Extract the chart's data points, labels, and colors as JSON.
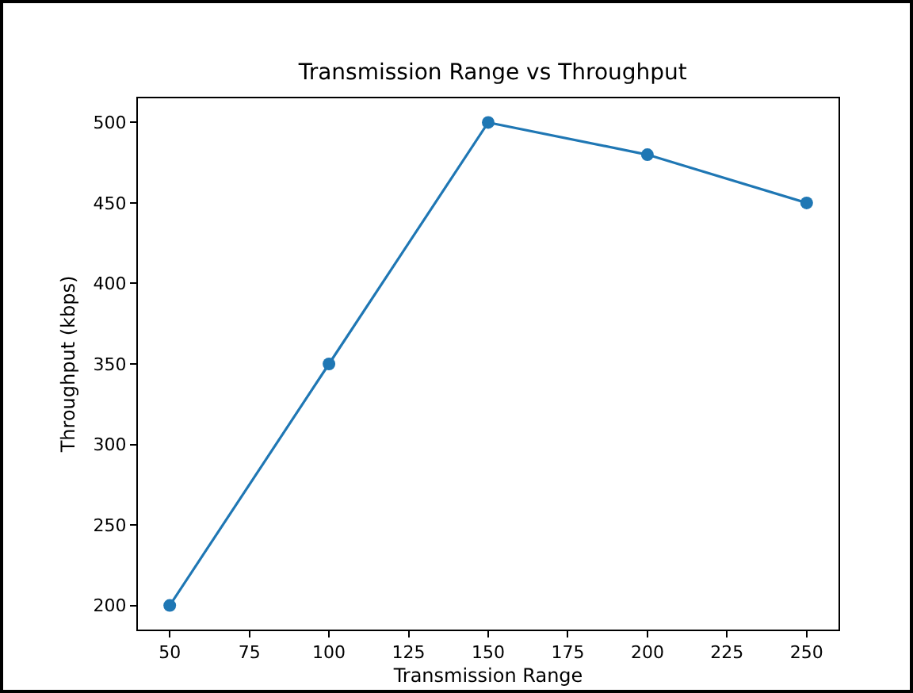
{
  "chart_data": {
    "type": "line",
    "title": "Transmission Range vs Throughput",
    "xlabel": "Transmission Range",
    "ylabel": "Throughput (kbps)",
    "x": [
      50,
      100,
      150,
      200,
      250
    ],
    "series": [
      {
        "color": "#1f77b4",
        "values": [
          200,
          350,
          500,
          480,
          450
        ]
      }
    ],
    "xlim": [
      40,
      260
    ],
    "xticks": [
      50,
      75,
      100,
      125,
      150,
      175,
      200,
      225,
      250
    ],
    "ylim": [
      185,
      515
    ],
    "yticks": [
      200,
      250,
      300,
      350,
      400,
      450,
      500
    ],
    "marker": "circle",
    "line_style": "solid",
    "grid": false
  }
}
